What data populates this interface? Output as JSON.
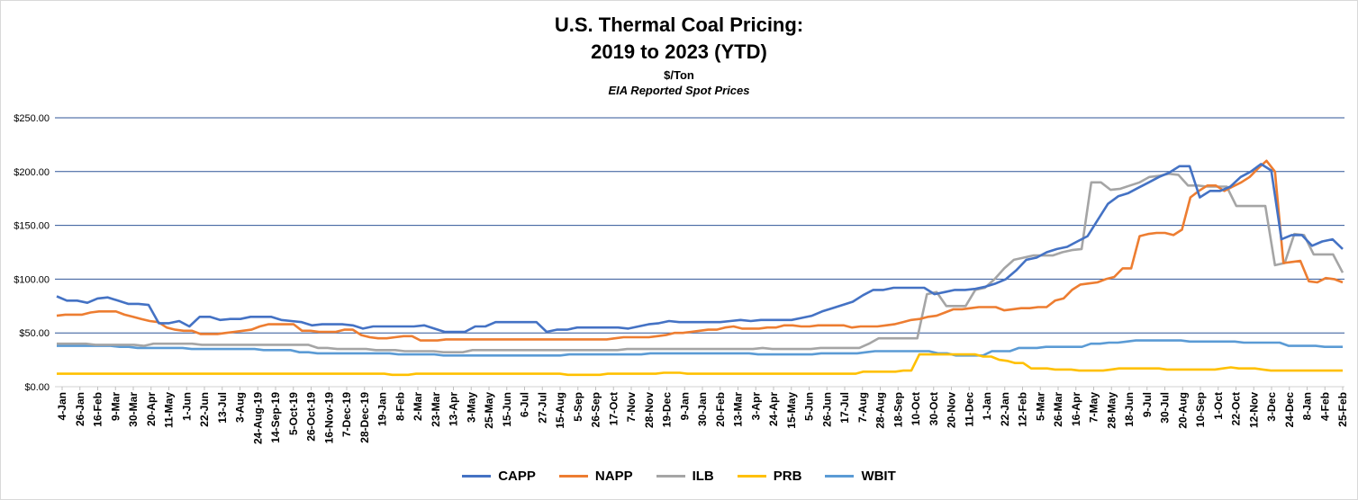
{
  "colors": {
    "CAPP": "#4472C4",
    "NAPP": "#ED7D31",
    "ILB": "#A5A5A5",
    "PRB": "#FFC000",
    "WBIT": "#5B9BD5",
    "gridline": "#2F5597"
  },
  "chart_data": {
    "type": "line",
    "title_line1": "U.S. Thermal Coal Pricing:",
    "title_line2": "2019 to 2023 (YTD)",
    "subtitle": "$/Ton",
    "subtitle2": "EIA Reported Spot Prices",
    "ylim": [
      0,
      250
    ],
    "yticks": [
      "$0.00",
      "$50.00",
      "$100.00",
      "$150.00",
      "$200.00",
      "$250.00"
    ],
    "ytick_values": [
      0,
      50,
      100,
      150,
      200,
      250
    ],
    "grid": true,
    "legend_position": "bottom",
    "xtick_labels": [
      "4-Jan",
      "26-Jan",
      "16-Feb",
      "9-Mar",
      "30-Mar",
      "20-Apr",
      "11-May",
      "1-Jun",
      "22-Jun",
      "13-Jul",
      "3-Aug",
      "24-Aug-19",
      "14-Sep-19",
      "5-Oct-19",
      "26-Oct-19",
      "16-Nov-19",
      "7-Dec-19",
      "28-Dec-19",
      "19-Jan",
      "8-Feb",
      "2-Mar",
      "23-Mar",
      "13-Apr",
      "3-May",
      "25-May",
      "15-Jun",
      "6-Jul",
      "27-Jul",
      "15-Aug",
      "5-Sep",
      "26-Sep",
      "17-Oct",
      "7-Nov",
      "28-Nov",
      "19-Dec",
      "9-Jan",
      "30-Jan",
      "20-Feb",
      "13-Mar",
      "3-Apr",
      "24-Apr",
      "15-May",
      "5-Jun",
      "26-Jun",
      "17-Jul",
      "7-Aug",
      "28-Aug",
      "18-Sep",
      "10-Oct",
      "30-Oct",
      "20-Nov",
      "11-Dec",
      "1-Jan",
      "22-Jan",
      "12-Feb",
      "5-Mar",
      "26-Mar",
      "16-Apr",
      "7-May",
      "28-May",
      "18-Jun",
      "9-Jul",
      "30-Jul",
      "20-Aug",
      "10-Sep",
      "1-Oct",
      "22-Oct",
      "12-Nov",
      "3-Dec",
      "24-Dec",
      "8-Jan",
      "4-Feb",
      "25-Feb"
    ],
    "series": [
      {
        "name": "CAPP",
        "values": [
          84,
          80,
          80,
          78,
          82,
          83,
          80,
          77,
          77,
          76,
          59,
          59,
          61,
          56,
          65,
          65,
          62,
          63,
          63,
          65,
          65,
          65,
          62,
          61,
          60,
          57,
          58,
          58,
          58,
          57,
          54,
          56,
          56,
          56,
          56,
          56,
          57,
          54,
          51,
          51,
          51,
          56,
          56,
          60,
          60,
          60,
          60,
          60,
          51,
          53,
          53,
          55,
          55,
          55,
          55,
          55,
          54,
          56,
          58,
          59,
          61,
          60,
          60,
          60,
          60,
          60,
          61,
          62,
          61,
          62,
          62,
          62,
          62,
          64,
          66,
          70,
          73,
          76,
          79,
          85,
          90,
          90,
          92,
          92,
          92,
          92,
          86,
          88,
          90,
          90,
          91,
          93,
          96,
          100,
          108,
          118,
          120,
          125,
          128,
          130,
          135,
          140,
          155,
          170,
          177,
          180,
          185,
          190,
          195,
          199,
          205,
          205,
          176,
          182,
          182,
          186,
          195,
          200,
          207,
          201,
          137,
          141,
          141,
          131,
          135,
          137,
          128
        ]
      },
      {
        "name": "NAPP",
        "values": [
          66,
          67,
          67,
          67,
          69,
          70,
          70,
          70,
          67,
          65,
          63,
          61,
          60,
          55,
          53,
          52,
          52,
          49,
          49,
          49,
          50,
          51,
          52,
          53,
          56,
          58,
          58,
          58,
          58,
          52,
          52,
          51,
          51,
          51,
          53,
          53,
          48,
          46,
          45,
          45,
          46,
          47,
          47,
          43,
          43,
          43,
          44,
          44,
          44,
          44,
          44,
          44,
          44,
          44,
          44,
          44,
          44,
          44,
          44,
          44,
          44,
          44,
          44,
          44,
          44,
          44,
          45,
          46,
          46,
          46,
          46,
          47,
          48,
          50,
          50,
          51,
          52,
          53,
          53,
          55,
          56,
          54,
          54,
          54,
          55,
          55,
          57,
          57,
          56,
          56,
          57,
          57,
          57,
          57,
          55,
          56,
          56,
          56,
          57,
          58,
          60,
          62,
          63,
          65,
          66,
          69,
          72,
          72,
          73,
          74,
          74,
          74,
          71,
          72,
          73,
          73,
          74,
          74,
          80,
          82,
          90,
          95,
          96,
          97,
          100,
          102,
          110,
          110,
          140,
          142,
          143,
          143,
          141,
          146,
          176,
          182,
          187,
          187,
          182,
          186,
          190,
          195,
          203,
          210,
          200,
          115,
          116,
          117,
          98,
          97,
          101,
          100,
          97
        ]
      },
      {
        "name": "ILB",
        "values": [
          40,
          40,
          40,
          40,
          39,
          39,
          39,
          39,
          39,
          38,
          40,
          40,
          40,
          40,
          40,
          39,
          39,
          39,
          39,
          39,
          39,
          39,
          39,
          39,
          39,
          39,
          39,
          36,
          36,
          35,
          35,
          35,
          35,
          34,
          34,
          34,
          33,
          33,
          33,
          33,
          32,
          32,
          32,
          34,
          34,
          34,
          34,
          34,
          34,
          34,
          34,
          34,
          34,
          34,
          34,
          34,
          34,
          34,
          34,
          35,
          35,
          35,
          35,
          35,
          35,
          35,
          35,
          35,
          35,
          35,
          35,
          35,
          35,
          36,
          35,
          35,
          35,
          35,
          35,
          36,
          36,
          36,
          36,
          36,
          40,
          45,
          45,
          45,
          45,
          45,
          86,
          88,
          75,
          75,
          75,
          90,
          92,
          100,
          110,
          118,
          120,
          122,
          122,
          122,
          125,
          127,
          128,
          190,
          190,
          183,
          184,
          187,
          190,
          195,
          196,
          198,
          197,
          187,
          187,
          186,
          186,
          186,
          168,
          168,
          168,
          168,
          113,
          115,
          142,
          141,
          123,
          123,
          123,
          106
        ]
      },
      {
        "name": "PRB",
        "values": [
          12,
          12,
          12,
          12,
          12,
          12,
          12,
          12,
          12,
          12,
          12,
          12,
          12,
          12,
          12,
          12,
          12,
          12,
          12,
          12,
          12,
          12,
          12,
          12,
          12,
          12,
          12,
          12,
          12,
          12,
          12,
          12,
          12,
          12,
          12,
          12,
          12,
          12,
          12,
          12,
          12,
          12,
          11,
          11,
          11,
          12,
          12,
          12,
          12,
          12,
          12,
          12,
          12,
          12,
          12,
          12,
          12,
          12,
          12,
          12,
          12,
          12,
          12,
          12,
          11,
          11,
          11,
          11,
          11,
          12,
          12,
          12,
          12,
          12,
          12,
          12,
          13,
          13,
          13,
          12,
          12,
          12,
          12,
          12,
          12,
          12,
          12,
          12,
          12,
          12,
          12,
          12,
          12,
          12,
          12,
          12,
          12,
          12,
          12,
          12,
          12,
          14,
          14,
          14,
          14,
          14,
          15,
          15,
          30,
          30,
          30,
          30,
          30,
          30,
          30,
          30,
          28,
          28,
          25,
          24,
          22,
          22,
          17,
          17,
          17,
          16,
          16,
          16,
          15,
          15,
          15,
          15,
          16,
          17,
          17,
          17,
          17,
          17,
          17,
          16,
          16,
          16,
          16,
          16,
          16,
          16,
          17,
          18,
          17,
          17,
          17,
          16,
          15,
          15,
          15,
          15,
          15,
          15,
          15,
          15,
          15,
          15
        ]
      },
      {
        "name": "WBIT",
        "values": [
          38,
          38,
          38,
          38,
          38,
          38,
          38,
          37,
          37,
          36,
          36,
          36,
          36,
          36,
          36,
          35,
          35,
          35,
          35,
          35,
          35,
          35,
          35,
          34,
          34,
          34,
          34,
          32,
          32,
          31,
          31,
          31,
          31,
          31,
          31,
          31,
          31,
          31,
          30,
          30,
          30,
          30,
          30,
          29,
          29,
          29,
          29,
          29,
          29,
          29,
          29,
          29,
          29,
          29,
          29,
          29,
          29,
          30,
          30,
          30,
          30,
          30,
          30,
          30,
          30,
          30,
          31,
          31,
          31,
          31,
          31,
          31,
          31,
          31,
          31,
          31,
          31,
          31,
          30,
          30,
          30,
          30,
          30,
          30,
          30,
          31,
          31,
          31,
          31,
          31,
          32,
          33,
          33,
          33,
          33,
          33,
          33,
          33,
          31,
          31,
          29,
          29,
          29,
          29,
          33,
          33,
          33,
          36,
          36,
          36,
          37,
          37,
          37,
          37,
          37,
          40,
          40,
          41,
          41,
          42,
          43,
          43,
          43,
          43,
          43,
          43,
          42,
          42,
          42,
          42,
          42,
          42,
          41,
          41,
          41,
          41,
          41,
          38,
          38,
          38,
          38,
          37,
          37,
          37
        ]
      }
    ]
  }
}
